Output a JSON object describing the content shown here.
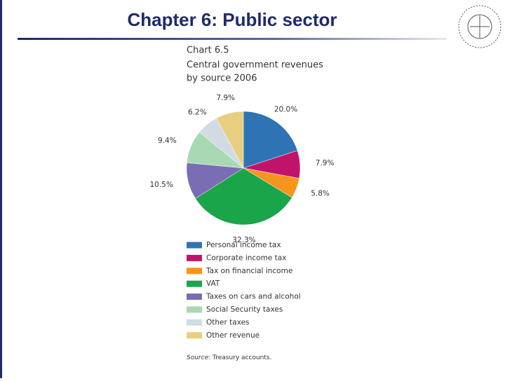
{
  "slide": {
    "title": "Chapter 6: Public sector"
  },
  "chart_data": {
    "type": "pie",
    "label": "Chart 6.5",
    "title": [
      "Central government revenues",
      "by source 2006"
    ],
    "categories": [
      "Personal income tax",
      "Corporate income tax",
      "Tax on financial income",
      "VAT",
      "Taxes on cars and alcohol",
      "Social Security taxes",
      "Other taxes",
      "Other revenue"
    ],
    "values": [
      20.0,
      7.9,
      5.8,
      32.3,
      10.5,
      9.4,
      6.2,
      7.9
    ],
    "value_labels": [
      "20.0%",
      "7.9%",
      "5.8%",
      "32.3%",
      "10.5%",
      "9.4%",
      "6.2%",
      "7.9%"
    ],
    "colors": [
      "#2e74b5",
      "#c0146a",
      "#f7941d",
      "#1ba54b",
      "#7a6db3",
      "#a9d9b2",
      "#d2dbe4",
      "#e8cf7f"
    ],
    "source_label": "Source:",
    "source": "Treasury accounts."
  }
}
